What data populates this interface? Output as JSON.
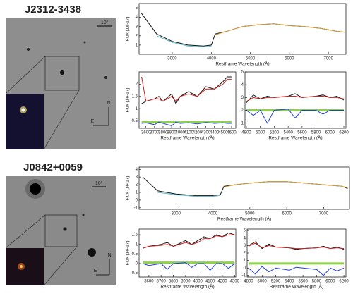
{
  "objects": [
    {
      "name": "J2312-3438",
      "scale_label": "10\"",
      "north": "N",
      "east": "E"
    },
    {
      "name": "J0842+0059",
      "scale_label": "10\"",
      "north": "N",
      "east": "E"
    }
  ],
  "chart_data": [
    {
      "type": "line",
      "xlabel": "Restframe Wavelength (Å)",
      "ylabel": "Flux (1e-17)",
      "x": [
        2200,
        2600,
        3000,
        3400,
        3800,
        4000,
        4100,
        4400,
        4800,
        5200,
        5600,
        6000,
        6400,
        6800,
        7200,
        7400
      ],
      "series": [
        {
          "color": "#111111",
          "values": [
            4.5,
            2.2,
            1.4,
            1.0,
            0.9,
            1.0,
            2.2,
            2.5,
            3.0,
            3.2,
            3.3,
            3.1,
            3.0,
            2.8,
            2.5,
            2.4
          ]
        },
        {
          "color": "#5bbfd6",
          "values": [
            null,
            2.0,
            1.3,
            0.9,
            0.8,
            0.9,
            null,
            null,
            null,
            null,
            null,
            null,
            null,
            null,
            null,
            null
          ]
        },
        {
          "color": "#e0a030",
          "values": [
            null,
            null,
            null,
            null,
            null,
            null,
            2.1,
            2.5,
            3.0,
            3.2,
            3.3,
            3.1,
            3.0,
            2.8,
            2.5,
            2.4
          ]
        }
      ],
      "xlim": [
        2150,
        7450
      ],
      "ylim": [
        0,
        5.5
      ],
      "xticks": [
        3000,
        4000,
        5000,
        6000,
        7000
      ],
      "yticks": [
        1,
        2,
        3,
        4,
        5
      ]
    },
    {
      "type": "line",
      "xlabel": "Restframe Wavelength (Å)",
      "ylabel": "Flux (1e-17)",
      "x": [
        3550,
        3600,
        3700,
        3750,
        3800,
        3900,
        3950,
        4000,
        4100,
        4200,
        4300,
        4400,
        4500,
        4550,
        4600
      ],
      "series": [
        {
          "color": "#111111",
          "values": [
            1.2,
            1.3,
            1.4,
            1.5,
            1.3,
            1.6,
            1.2,
            1.5,
            1.7,
            1.5,
            1.9,
            1.8,
            2.1,
            2.3,
            2.3
          ]
        },
        {
          "color": "#d02020",
          "values": [
            2.3,
            1.3,
            1.4,
            1.4,
            1.3,
            1.5,
            1.3,
            1.5,
            1.6,
            1.5,
            1.8,
            1.8,
            2.0,
            2.2,
            2.2
          ]
        },
        {
          "color": "#8fd14f",
          "values": [
            0.45,
            0.45,
            0.45,
            0.45,
            0.45,
            0.45,
            0.45,
            0.45,
            0.45,
            0.45,
            0.45,
            0.45,
            0.45,
            0.45,
            0.45
          ]
        },
        {
          "color": "#1f3fe0",
          "values": [
            0.4,
            0.42,
            0.35,
            0.45,
            0.4,
            0.3,
            0.45,
            0.4,
            0.42,
            0.38,
            0.44,
            0.4,
            0.42,
            0.4,
            0.4
          ]
        }
      ],
      "xlim": [
        3520,
        4650
      ],
      "ylim": [
        0.2,
        2.5
      ],
      "xticks": [
        3600,
        3700,
        3800,
        3900,
        4000,
        4100,
        4200,
        4300,
        4400,
        4500,
        4600
      ],
      "yticks": [
        0.5,
        1,
        1.5,
        2
      ]
    },
    {
      "type": "line",
      "xlabel": "Restframe Wavelength (Å)",
      "x": [
        4800,
        4900,
        5000,
        5100,
        5200,
        5400,
        5500,
        5600,
        5800,
        5900,
        6000,
        6100,
        6200
      ],
      "series": [
        {
          "color": "#111111",
          "values": [
            2.6,
            3.2,
            2.9,
            3.1,
            3.0,
            3.1,
            3.3,
            3.0,
            3.1,
            3.2,
            3.0,
            3.1,
            2.8
          ]
        },
        {
          "color": "#d02020",
          "values": [
            2.7,
            3.0,
            2.9,
            3.0,
            3.0,
            3.1,
            3.1,
            3.0,
            3.1,
            3.1,
            3.0,
            3.0,
            2.9
          ]
        },
        {
          "color": "#8fd14f",
          "values": [
            2.0,
            2.0,
            2.0,
            2.0,
            2.0,
            2.0,
            2.0,
            2.0,
            2.0,
            2.0,
            2.0,
            2.0,
            2.0
          ]
        },
        {
          "color": "#1f3fe0",
          "values": [
            2.0,
            1.6,
            2.0,
            1.0,
            2.0,
            2.1,
            1.4,
            2.0,
            2.0,
            1.7,
            2.0,
            2.0,
            2.0
          ]
        }
      ],
      "xlim": [
        4780,
        6230
      ],
      "ylim": [
        0.6,
        5
      ],
      "xticks": [
        4800,
        5000,
        5200,
        5400,
        5600,
        5800,
        6000,
        6200
      ],
      "yticks": [
        1,
        2,
        3,
        4,
        5
      ]
    },
    {
      "type": "line",
      "xlabel": "Restframe Wavelength (Å)",
      "ylabel": "Flux (1e-17)",
      "x": [
        2100,
        2500,
        3000,
        3500,
        4000,
        4200,
        4300,
        4600,
        5000,
        5500,
        6000,
        6500,
        7000,
        7500,
        7650
      ],
      "series": [
        {
          "color": "#111111",
          "values": [
            3.0,
            1.2,
            0.8,
            0.6,
            0.6,
            0.7,
            1.8,
            2.0,
            2.2,
            2.4,
            2.4,
            2.2,
            2.0,
            1.8,
            1.5
          ]
        },
        {
          "color": "#5bbfd6",
          "values": [
            null,
            1.0,
            0.7,
            0.5,
            0.5,
            0.6,
            null,
            null,
            null,
            null,
            null,
            null,
            null,
            null,
            null
          ]
        },
        {
          "color": "#e0a030",
          "values": [
            null,
            null,
            null,
            null,
            null,
            null,
            1.7,
            2.0,
            2.2,
            2.4,
            2.4,
            2.2,
            2.0,
            1.8,
            1.6
          ]
        }
      ],
      "xlim": [
        2000,
        7700
      ],
      "ylim": [
        -1.2,
        4.3
      ],
      "xticks": [
        3000,
        4000,
        5000,
        6000,
        7000
      ],
      "yticks": [
        -1,
        0,
        1,
        2,
        3,
        4
      ]
    },
    {
      "type": "line",
      "xlabel": "Restframe Wavelength (Å)",
      "ylabel": "Flux (1e-17)",
      "x": [
        3550,
        3600,
        3700,
        3750,
        3800,
        3900,
        3950,
        4000,
        4050,
        4100,
        4150,
        4200,
        4250,
        4300
      ],
      "series": [
        {
          "color": "#111111",
          "values": [
            0.8,
            0.9,
            1.0,
            1.1,
            0.9,
            1.2,
            1.0,
            1.2,
            1.4,
            1.3,
            1.5,
            1.4,
            1.6,
            1.5
          ]
        },
        {
          "color": "#d02020",
          "values": [
            0.8,
            0.9,
            0.95,
            1.0,
            0.9,
            1.1,
            1.0,
            1.1,
            1.3,
            1.3,
            1.45,
            1.4,
            1.5,
            1.5
          ]
        },
        {
          "color": "#8fd14f",
          "values": [
            0.05,
            0.05,
            0.05,
            0.05,
            0.05,
            0.05,
            0.05,
            0.05,
            0.05,
            0.05,
            0.05,
            0.05,
            0.05,
            0.05
          ]
        },
        {
          "color": "#1f3fe0",
          "values": [
            0,
            -0.1,
            0,
            -0.3,
            0,
            0.05,
            -0.2,
            0,
            0,
            -0.35,
            0,
            0,
            -0.25,
            0
          ]
        }
      ],
      "xlim": [
        3520,
        4310
      ],
      "ylim": [
        -0.7,
        1.8
      ],
      "xticks": [
        3600,
        3700,
        3800,
        3900,
        4000,
        4100,
        4200,
        4300
      ],
      "yticks": [
        -0.5,
        0,
        0.5,
        1,
        1.5
      ]
    },
    {
      "type": "line",
      "xlabel": "Restframe Wavelength (Å)",
      "x": [
        4800,
        4900,
        5000,
        5100,
        5200,
        5400,
        5500,
        5600,
        5800,
        5900,
        6000,
        6100,
        6200
      ],
      "series": [
        {
          "color": "#111111",
          "values": [
            3.0,
            3.5,
            2.6,
            3.2,
            2.8,
            2.7,
            2.5,
            2.6,
            2.7,
            2.9,
            2.6,
            2.8,
            2.5
          ]
        },
        {
          "color": "#d02020",
          "values": [
            2.9,
            3.3,
            2.7,
            3.0,
            2.8,
            2.7,
            2.6,
            2.6,
            2.7,
            2.8,
            2.6,
            2.7,
            2.6
          ]
        },
        {
          "color": "#8fd14f",
          "values": [
            0.6,
            0.6,
            0.6,
            0.6,
            0.6,
            0.6,
            0.6,
            0.6,
            0.6,
            0.6,
            0.6,
            0.6,
            0.6
          ]
        },
        {
          "color": "#1f3fe0",
          "values": [
            0,
            -0.8,
            0.2,
            -0.5,
            0,
            -0.3,
            0.1,
            0,
            -0.2,
            -1.0,
            0,
            -0.4,
            0
          ]
        }
      ],
      "xlim": [
        4780,
        6230
      ],
      "ylim": [
        -1.2,
        5.2
      ],
      "xticks": [
        4800,
        5000,
        5200,
        5400,
        5600,
        5800,
        6000,
        6200
      ],
      "yticks": [
        -1,
        0,
        1,
        2,
        3,
        4,
        5
      ]
    }
  ]
}
